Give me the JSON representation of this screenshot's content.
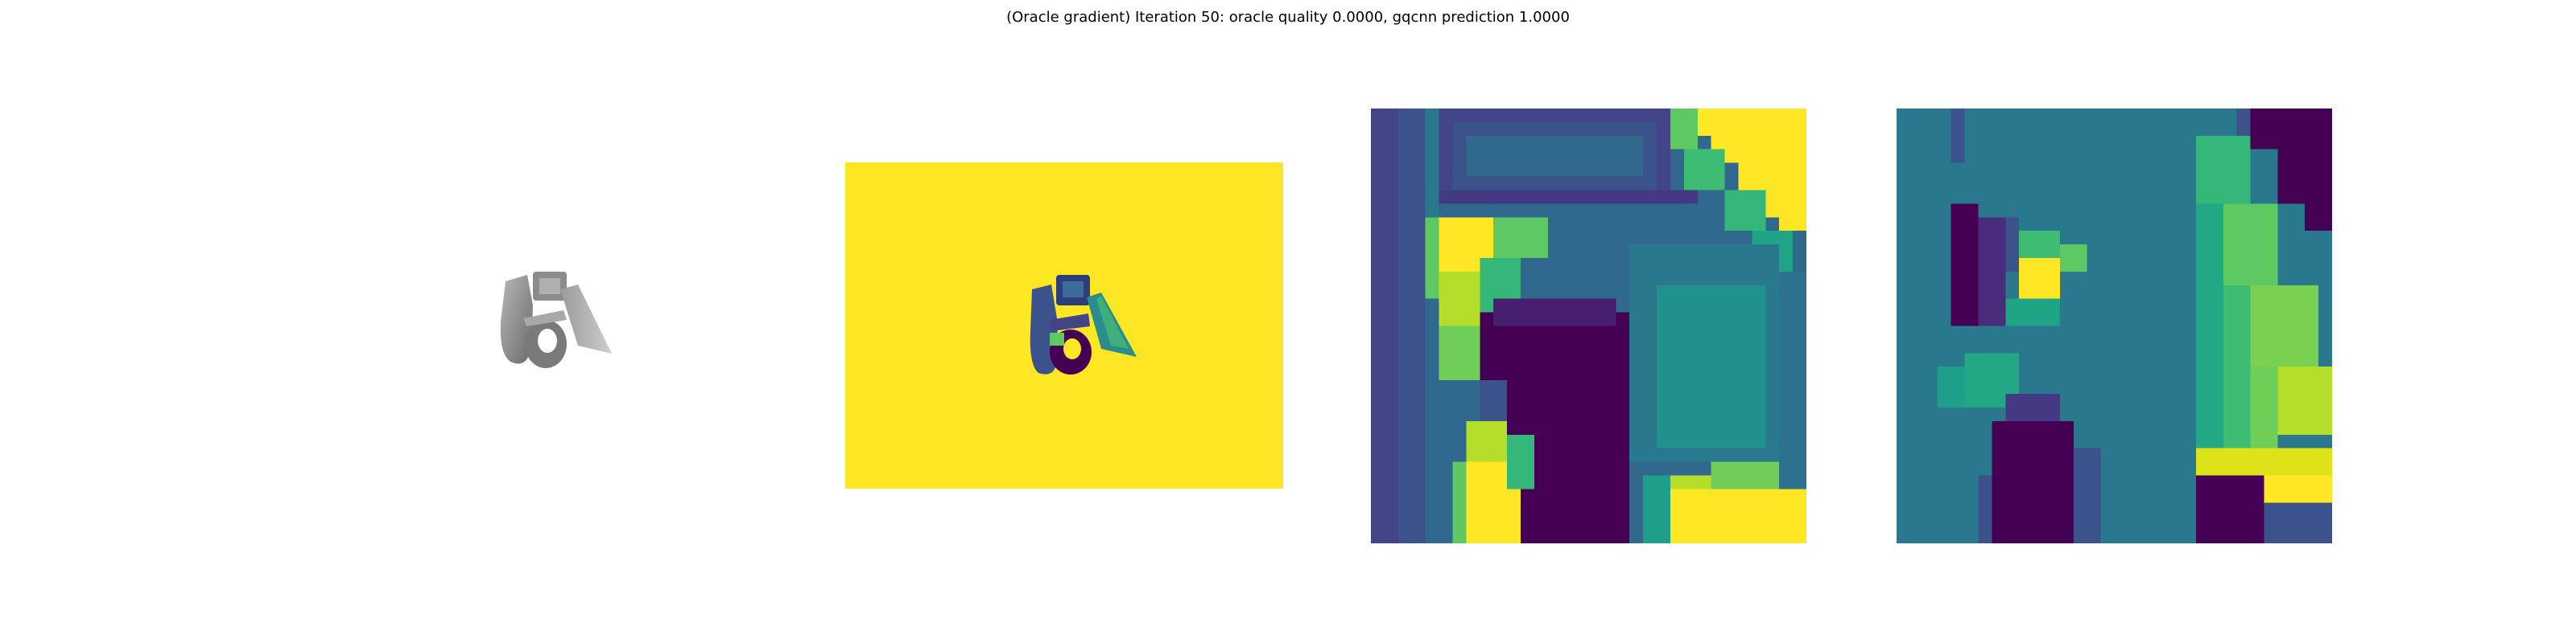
{
  "figure": {
    "title": "(Oracle gradient) Iteration 50: oracle quality 0.0000, gqcnn prediction 1.0000"
  },
  "panels": [
    {
      "content": "rendered grayscale object (no axes)"
    },
    {
      "content": "depth image of object on yellow background (viridis)"
    },
    {
      "content": "zoomed depth crop heatmap (viridis, pixelated)"
    },
    {
      "content": "gradient heatmap (viridis, pixelated)"
    }
  ],
  "colors": {
    "background": "#ffffff",
    "viridis_dark": "#440154",
    "viridis_blue": "#3b528b",
    "viridis_teal": "#21918c",
    "viridis_green": "#5ec962",
    "viridis_yellow": "#fde725"
  }
}
